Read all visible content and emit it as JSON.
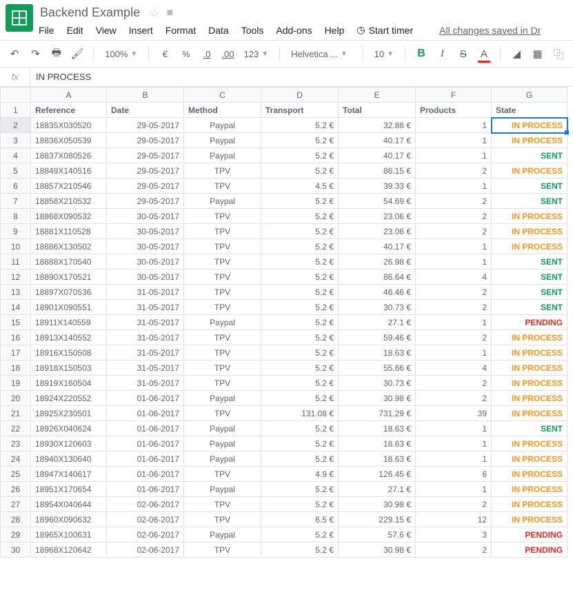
{
  "app": {
    "title": "Backend Example",
    "saved_text": "All changes saved in Dr"
  },
  "menu": {
    "file": "File",
    "edit": "Edit",
    "view": "View",
    "insert": "Insert",
    "format": "Format",
    "data": "Data",
    "tools": "Tools",
    "addons": "Add-ons",
    "help": "Help",
    "timer": "Start timer"
  },
  "toolbar": {
    "zoom": "100%",
    "currency": "€",
    "percent": "%",
    "dec_dec": ".0",
    "inc_dec": ".00",
    "numfmt": "123",
    "font": "Helvetica ...",
    "size": "10"
  },
  "formula_bar": {
    "fx": "fx",
    "value": "IN PROCESS"
  },
  "sheet": {
    "columns": [
      "A",
      "B",
      "C",
      "D",
      "E",
      "F",
      "G"
    ],
    "headers": {
      "A": "Reference",
      "B": "Date",
      "C": "Method",
      "D": "Transport",
      "E": "Total",
      "F": "Products",
      "G": "State"
    },
    "selected": {
      "row": 2,
      "col": "G"
    },
    "state_styles": {
      "IN PROCESS": "st-process",
      "SENT": "st-sent",
      "PENDING": "st-pending"
    },
    "rows": [
      {
        "n": 1
      },
      {
        "n": 2,
        "A": "18835X030520",
        "B": "29-05-2017",
        "C": "Paypal",
        "D": "5.2 €",
        "E": "32.88 €",
        "F": "1",
        "G": "IN PROCESS"
      },
      {
        "n": 3,
        "A": "18836X050539",
        "B": "29-05-2017",
        "C": "Paypal",
        "D": "5.2 €",
        "E": "40.17 €",
        "F": "1",
        "G": "IN PROCESS"
      },
      {
        "n": 4,
        "A": "18837X080526",
        "B": "29-05-2017",
        "C": "Paypal",
        "D": "5.2 €",
        "E": "40.17 €",
        "F": "1",
        "G": "SENT"
      },
      {
        "n": 5,
        "A": "18849X140516",
        "B": "29-05-2017",
        "C": "TPV",
        "D": "5.2 €",
        "E": "86.15 €",
        "F": "2",
        "G": "IN PROCESS"
      },
      {
        "n": 6,
        "A": "18857X210546",
        "B": "29-05-2017",
        "C": "TPV",
        "D": "4.5 €",
        "E": "39.33 €",
        "F": "1",
        "G": "SENT"
      },
      {
        "n": 7,
        "A": "18858X210532",
        "B": "29-05-2017",
        "C": "Paypal",
        "D": "5.2 €",
        "E": "54.69 €",
        "F": "2",
        "G": "SENT"
      },
      {
        "n": 8,
        "A": "18868X090532",
        "B": "30-05-2017",
        "C": "TPV",
        "D": "5.2 €",
        "E": "23.06 €",
        "F": "2",
        "G": "IN PROCESS"
      },
      {
        "n": 9,
        "A": "18881X110528",
        "B": "30-05-2017",
        "C": "TPV",
        "D": "5.2 €",
        "E": "23.06 €",
        "F": "2",
        "G": "IN PROCESS"
      },
      {
        "n": 10,
        "A": "18886X130502",
        "B": "30-05-2017",
        "C": "TPV",
        "D": "5.2 €",
        "E": "40.17 €",
        "F": "1",
        "G": "IN PROCESS"
      },
      {
        "n": 11,
        "A": "18888X170540",
        "B": "30-05-2017",
        "C": "TPV",
        "D": "5.2 €",
        "E": "26.98 €",
        "F": "1",
        "G": "SENT"
      },
      {
        "n": 12,
        "A": "18890X170521",
        "B": "30-05-2017",
        "C": "TPV",
        "D": "5.2 €",
        "E": "86.64 €",
        "F": "4",
        "G": "SENT"
      },
      {
        "n": 13,
        "A": "18897X070536",
        "B": "31-05-2017",
        "C": "TPV",
        "D": "5.2 €",
        "E": "46.46 €",
        "F": "2",
        "G": "SENT"
      },
      {
        "n": 14,
        "A": "18901X090551",
        "B": "31-05-2017",
        "C": "TPV",
        "D": "5.2 €",
        "E": "30.73 €",
        "F": "2",
        "G": "SENT"
      },
      {
        "n": 15,
        "A": "18911X140559",
        "B": "31-05-2017",
        "C": "Paypal",
        "D": "5.2 €",
        "E": "27.1 €",
        "F": "1",
        "G": "PENDING"
      },
      {
        "n": 16,
        "A": "18913X140552",
        "B": "31-05-2017",
        "C": "TPV",
        "D": "5.2 €",
        "E": "59.46 €",
        "F": "2",
        "G": "IN PROCESS"
      },
      {
        "n": 17,
        "A": "18916X150508",
        "B": "31-05-2017",
        "C": "TPV",
        "D": "5.2 €",
        "E": "18.63 €",
        "F": "1",
        "G": "IN PROCESS"
      },
      {
        "n": 18,
        "A": "18918X150503",
        "B": "31-05-2017",
        "C": "TPV",
        "D": "5.2 €",
        "E": "55.66 €",
        "F": "4",
        "G": "IN PROCESS"
      },
      {
        "n": 19,
        "A": "18919X160504",
        "B": "31-05-2017",
        "C": "TPV",
        "D": "5.2 €",
        "E": "30.73 €",
        "F": "2",
        "G": "IN PROCESS"
      },
      {
        "n": 20,
        "A": "18924X220552",
        "B": "01-06-2017",
        "C": "Paypal",
        "D": "5.2 €",
        "E": "30.98 €",
        "F": "2",
        "G": "IN PROCESS"
      },
      {
        "n": 21,
        "A": "18925X230501",
        "B": "01-06-2017",
        "C": "TPV",
        "D": "131.08 €",
        "E": "731.29 €",
        "F": "39",
        "G": "IN PROCESS"
      },
      {
        "n": 22,
        "A": "18926X040624",
        "B": "01-06-2017",
        "C": "Paypal",
        "D": "5.2 €",
        "E": "18.63 €",
        "F": "1",
        "G": "SENT"
      },
      {
        "n": 23,
        "A": "18930X120603",
        "B": "01-06-2017",
        "C": "Paypal",
        "D": "5.2 €",
        "E": "18.63 €",
        "F": "1",
        "G": "IN PROCESS"
      },
      {
        "n": 24,
        "A": "18940X130640",
        "B": "01-06-2017",
        "C": "Paypal",
        "D": "5.2 €",
        "E": "18.63 €",
        "F": "1",
        "G": "IN PROCESS"
      },
      {
        "n": 25,
        "A": "18947X140617",
        "B": "01-06-2017",
        "C": "TPV",
        "D": "4.9 €",
        "E": "126.45 €",
        "F": "6",
        "G": "IN PROCESS"
      },
      {
        "n": 26,
        "A": "18951X170654",
        "B": "01-06-2017",
        "C": "Paypal",
        "D": "5.2 €",
        "E": "27.1 €",
        "F": "1",
        "G": "IN PROCESS"
      },
      {
        "n": 27,
        "A": "18954X040644",
        "B": "02-06-2017",
        "C": "TPV",
        "D": "5.2 €",
        "E": "30.98 €",
        "F": "2",
        "G": "IN PROCESS"
      },
      {
        "n": 28,
        "A": "18960X090632",
        "B": "02-06-2017",
        "C": "TPV",
        "D": "6.5 €",
        "E": "229.15 €",
        "F": "12",
        "G": "IN PROCESS"
      },
      {
        "n": 29,
        "A": "18965X100631",
        "B": "02-06-2017",
        "C": "Paypal",
        "D": "5.2 €",
        "E": "57.6 €",
        "F": "3",
        "G": "PENDING"
      },
      {
        "n": 30,
        "A": "18968X120642",
        "B": "02-06-2017",
        "C": "TPV",
        "D": "5.2 €",
        "E": "30.98 €",
        "F": "2",
        "G": "PENDING"
      }
    ]
  }
}
